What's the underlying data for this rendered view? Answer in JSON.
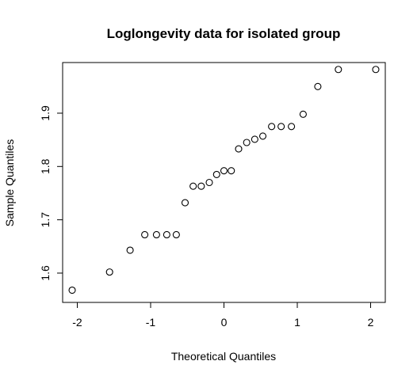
{
  "chart_data": {
    "type": "scatter",
    "title": "Loglongevity data for isolated group",
    "xlabel": "Theoretical Quantiles",
    "ylabel": "Sample Quantiles",
    "xlim": [
      -2.2,
      2.2
    ],
    "ylim": [
      1.545,
      1.995
    ],
    "x_ticks": [
      -2,
      -1,
      0,
      1,
      2
    ],
    "y_ticks": [
      1.6,
      1.7,
      1.8,
      1.9
    ],
    "x_tick_labels": [
      "-2",
      "-1",
      "0",
      "1",
      "2"
    ],
    "y_tick_labels": [
      "1.6",
      "1.7",
      "1.8",
      "1.9"
    ],
    "grid": false,
    "legend": "none",
    "point_color": "#000000",
    "x": [
      -2.07,
      -1.56,
      -1.28,
      -1.08,
      -0.92,
      -0.78,
      -0.65,
      -0.53,
      -0.42,
      -0.31,
      -0.2,
      -0.1,
      0.0,
      0.1,
      0.2,
      0.31,
      0.42,
      0.53,
      0.65,
      0.78,
      0.92,
      1.08,
      1.28,
      1.56,
      2.07
    ],
    "y": [
      1.568,
      1.602,
      1.643,
      1.672,
      1.672,
      1.672,
      1.672,
      1.732,
      1.763,
      1.763,
      1.77,
      1.785,
      1.792,
      1.792,
      1.833,
      1.845,
      1.851,
      1.857,
      1.875,
      1.875,
      1.875,
      1.898,
      1.95,
      1.982,
      1.982
    ]
  }
}
